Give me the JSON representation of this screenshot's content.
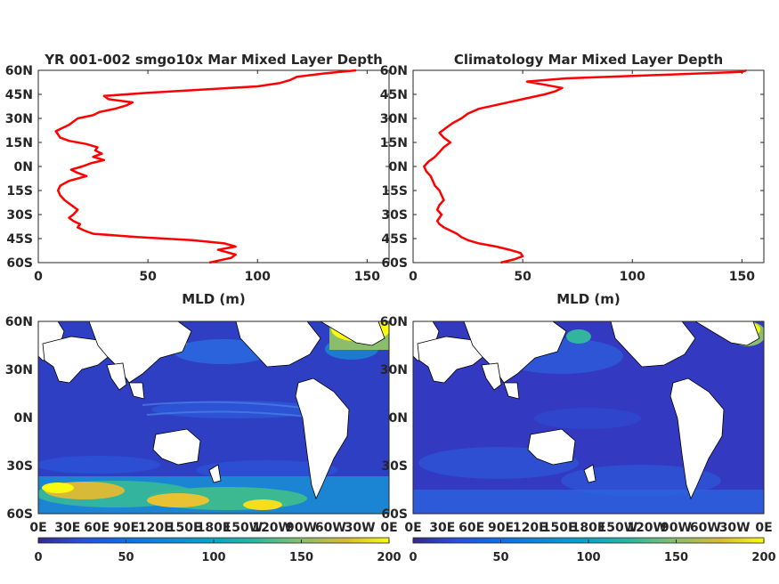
{
  "chart_data": [
    {
      "type": "line",
      "panel": "top-left",
      "title": "YR 001-002 smgo10x Mar Mixed Layer Depth",
      "xlabel": "MLD (m)",
      "ylabel": "",
      "xlim": [
        0,
        160
      ],
      "ylim": [
        -60,
        60
      ],
      "x_ticks": [
        0,
        50,
        100,
        150
      ],
      "x_tick_labels": [
        "0",
        "50",
        "100",
        "150"
      ],
      "y_ticks": [
        -60,
        -45,
        -30,
        -15,
        0,
        15,
        30,
        45,
        60
      ],
      "y_tick_labels": [
        "60S",
        "45S",
        "30S",
        "15S",
        "0N",
        "15N",
        "30N",
        "45N",
        "60N"
      ],
      "series": [
        {
          "color": "#ff0000",
          "lat": [
            -60,
            -57,
            -55,
            -52,
            -50,
            -48,
            -46,
            -44,
            -42,
            -40,
            -38,
            -36,
            -34,
            -32,
            -30,
            -27,
            -24,
            -21,
            -18,
            -15,
            -12,
            -9,
            -6,
            -4,
            -2,
            0,
            2,
            4,
            6,
            8,
            10,
            12,
            14,
            16,
            18,
            20,
            22,
            24,
            26,
            28,
            30,
            32,
            34,
            36,
            38,
            40,
            42,
            44,
            46,
            48,
            50,
            52,
            54,
            56,
            58,
            60
          ],
          "mld": [
            78,
            88,
            90,
            82,
            90,
            85,
            70,
            45,
            25,
            21,
            18,
            19,
            16,
            14,
            16,
            18,
            15,
            12,
            10,
            9,
            10,
            14,
            22,
            18,
            15,
            20,
            24,
            30,
            25,
            29,
            26,
            27,
            22,
            14,
            10,
            9,
            8,
            11,
            14,
            16,
            18,
            25,
            28,
            35,
            40,
            43,
            32,
            30,
            50,
            75,
            100,
            110,
            115,
            118,
            130,
            145
          ]
        }
      ]
    },
    {
      "type": "line",
      "panel": "top-right",
      "title": "Climatology Mar Mixed Layer Depth",
      "xlabel": "MLD (m)",
      "ylabel": "",
      "xlim": [
        0,
        160
      ],
      "ylim": [
        -60,
        60
      ],
      "x_ticks": [
        0,
        50,
        100,
        150
      ],
      "x_tick_labels": [
        "0",
        "50",
        "100",
        "150"
      ],
      "y_ticks": [
        -60,
        -45,
        -30,
        -15,
        0,
        15,
        30,
        45,
        60
      ],
      "y_tick_labels": [
        "60S",
        "45S",
        "30S",
        "15S",
        "0N",
        "15N",
        "30N",
        "45N",
        "60N"
      ],
      "series": [
        {
          "color": "#ff0000",
          "lat": [
            -60,
            -58,
            -56,
            -54,
            -52,
            -50,
            -48,
            -46,
            -44,
            -42,
            -40,
            -38,
            -36,
            -34,
            -32,
            -30,
            -27,
            -24,
            -21,
            -18,
            -15,
            -12,
            -9,
            -6,
            -3,
            0,
            3,
            6,
            9,
            12,
            15,
            18,
            21,
            24,
            27,
            30,
            33,
            36,
            39,
            42,
            45,
            47,
            49,
            51,
            53,
            55,
            57,
            59,
            60
          ],
          "mld": [
            40,
            46,
            50,
            49,
            44,
            38,
            30,
            25,
            22,
            20,
            17,
            14,
            12,
            11,
            12,
            13,
            11,
            12,
            14,
            13,
            12,
            10,
            9,
            8,
            6,
            5,
            7,
            10,
            12,
            14,
            17,
            14,
            12,
            15,
            18,
            22,
            25,
            30,
            40,
            50,
            60,
            65,
            68,
            60,
            52,
            70,
            110,
            150,
            152
          ]
        }
      ]
    },
    {
      "type": "heatmap",
      "panel": "bottom-left",
      "title": "",
      "description_fields": {
        "x_tick_labels": [
          "0E",
          "30E",
          "60E",
          "90E",
          "120E",
          "150E",
          "180E",
          "150W",
          "120W",
          "90W",
          "60W",
          "30W",
          "0E"
        ],
        "y_tick_labels": [
          "60S",
          "30S",
          "0N",
          "30N",
          "60N"
        ]
      },
      "xlim": [
        0,
        360
      ],
      "ylim": [
        -60,
        60
      ],
      "colorbar": {
        "ticks": [
          0,
          50,
          100,
          150,
          200
        ],
        "tick_labels": [
          "0",
          "50",
          "100",
          "150",
          "200"
        ],
        "range": [
          0,
          200
        ],
        "colormap": "parula"
      }
    },
    {
      "type": "heatmap",
      "panel": "bottom-right",
      "title": "",
      "description_fields": {
        "x_tick_labels": [
          "0E",
          "30E",
          "60E",
          "90E",
          "120E",
          "150E",
          "180E",
          "150W",
          "120W",
          "90W",
          "60W",
          "30W",
          "0E"
        ],
        "y_tick_labels": [
          "60S",
          "30S",
          "0N",
          "30N",
          "60N"
        ]
      },
      "xlim": [
        0,
        360
      ],
      "ylim": [
        -60,
        60
      ],
      "colorbar": {
        "ticks": [
          0,
          50,
          100,
          150,
          200
        ],
        "tick_labels": [
          "0",
          "50",
          "100",
          "150",
          "200"
        ],
        "range": [
          0,
          200
        ],
        "colormap": "parula"
      }
    }
  ]
}
